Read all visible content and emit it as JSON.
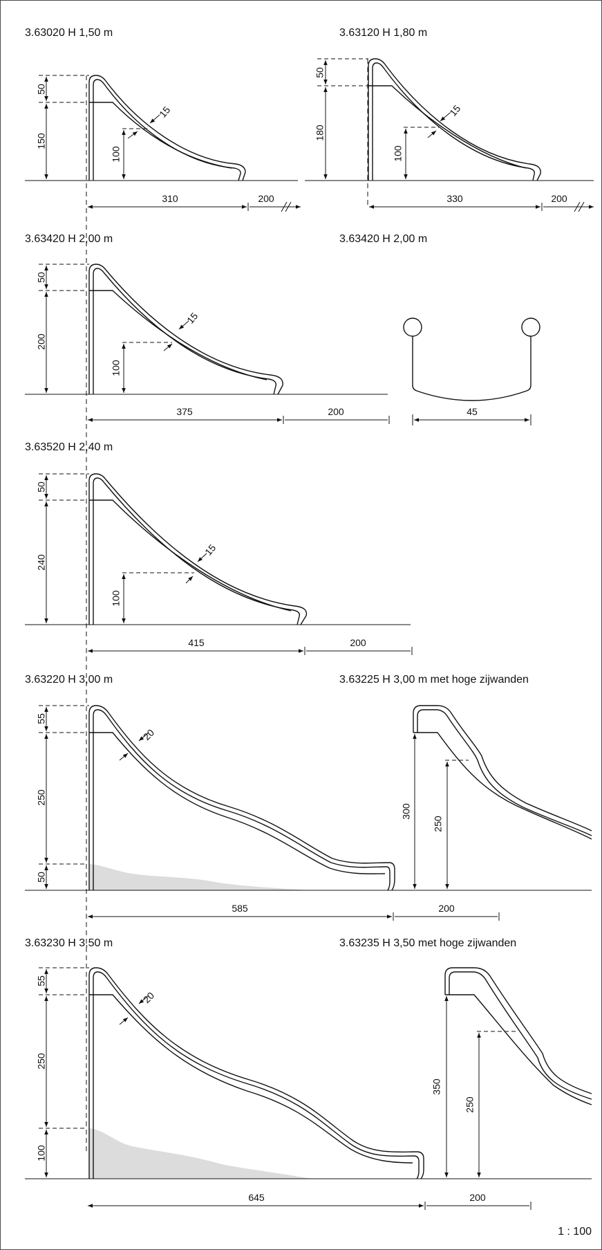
{
  "titles": {
    "t1": "3.63020 H 1,50 m",
    "t2": "3.63120 H 1,80 m",
    "t3": "3.63420 H 2,00 m",
    "t4": "3.63420 H 2,00 m",
    "t5": "3.63520 H 2,40 m",
    "t6": "3.63220 H 3,00 m",
    "t7": "3.63225 H 3,00 m met hoge zijwanden",
    "t8": "3.63230 H 3,50 m",
    "t9": "3.63235 H 3,50 met hoge zijwanden"
  },
  "dims": {
    "s1": {
      "top": "50",
      "height": "150",
      "mid": "100",
      "thick": "15",
      "length": "310",
      "run": "200"
    },
    "s2": {
      "top": "50",
      "height": "180",
      "mid": "100",
      "thick": "15",
      "length": "330",
      "run": "200"
    },
    "s3": {
      "top": "50",
      "height": "200",
      "mid": "100",
      "thick": "15",
      "length": "375",
      "run": "200"
    },
    "s4": {
      "width": "45"
    },
    "s5": {
      "top": "50",
      "height": "240",
      "mid": "100",
      "thick": "15",
      "length": "415",
      "run": "200"
    },
    "s6": {
      "top": "55",
      "height": "250",
      "low": "50",
      "thick": "20",
      "length": "585",
      "run": "200"
    },
    "s7": {
      "height": "300",
      "mid": "250"
    },
    "s8": {
      "top": "55",
      "height": "250",
      "low": "100",
      "thick": "20",
      "length": "645",
      "run": "200"
    },
    "s9": {
      "height": "350",
      "mid": "250"
    }
  },
  "scale": "1 : 100"
}
